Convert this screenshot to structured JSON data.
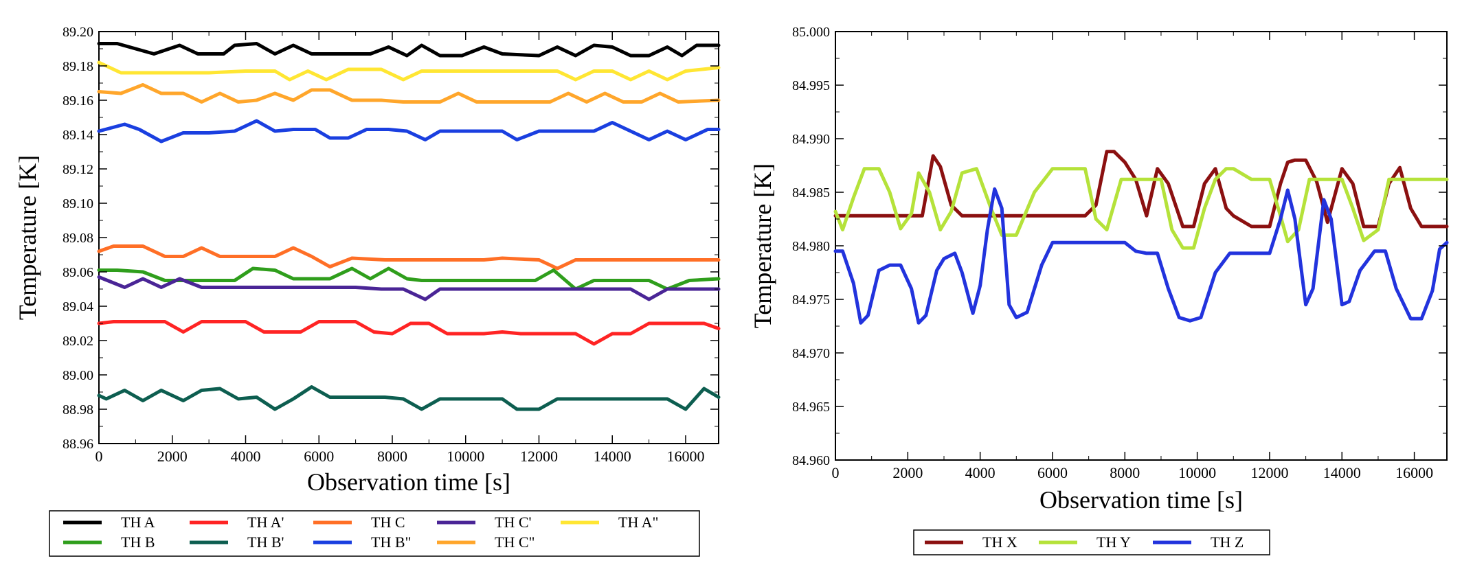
{
  "chart_data": [
    {
      "type": "line",
      "title": "",
      "xlabel": "Observation time [s]",
      "ylabel": "Temperature [K]",
      "xlim": [
        0,
        16900
      ],
      "ylim": [
        88.96,
        89.2
      ],
      "xticks": [
        0,
        2000,
        4000,
        6000,
        8000,
        10000,
        12000,
        14000,
        16000
      ],
      "xtick_labels": [
        "0",
        "2000",
        "4000",
        "6000",
        "8000",
        "10000",
        "12000",
        "14000",
        "16000"
      ],
      "yticks": [
        88.96,
        88.98,
        89.0,
        89.02,
        89.04,
        89.06,
        89.08,
        89.1,
        89.12,
        89.14,
        89.16,
        89.18,
        89.2
      ],
      "ytick_labels": [
        "88.96",
        "88.98",
        "89.00",
        "89.02",
        "89.04",
        "89.06",
        "89.08",
        "89.10",
        "89.12",
        "89.14",
        "89.16",
        "89.18",
        "89.20"
      ],
      "grid": false,
      "legend_position": "bottom",
      "series": [
        {
          "name": "TH A",
          "color": "#000000",
          "x": [
            0,
            500,
            1000,
            1500,
            2200,
            2700,
            3400,
            3700,
            4300,
            4800,
            5300,
            5800,
            6300,
            6900,
            7400,
            7900,
            8400,
            8800,
            9300,
            9900,
            10500,
            11000,
            12000,
            12500,
            13000,
            13500,
            14000,
            14500,
            15000,
            15500,
            15900,
            16300,
            16900
          ],
          "y": [
            89.193,
            89.193,
            89.19,
            89.187,
            89.192,
            89.187,
            89.187,
            89.192,
            89.193,
            89.187,
            89.192,
            89.187,
            89.187,
            89.187,
            89.187,
            89.191,
            89.186,
            89.192,
            89.186,
            89.186,
            89.191,
            89.187,
            89.186,
            89.191,
            89.186,
            89.192,
            89.191,
            89.186,
            89.186,
            89.191,
            89.186,
            89.192,
            89.192
          ]
        },
        {
          "name": "TH A\"",
          "color": "#ffe633",
          "x": [
            0,
            300,
            600,
            1000,
            2000,
            3000,
            4000,
            4800,
            5200,
            5700,
            6200,
            6800,
            7700,
            8300,
            8800,
            9300,
            10000,
            11000,
            12000,
            12500,
            13000,
            13500,
            14000,
            14500,
            15000,
            15500,
            16000,
            16900
          ],
          "y": [
            89.182,
            89.179,
            89.176,
            89.176,
            89.176,
            89.176,
            89.177,
            89.177,
            89.172,
            89.177,
            89.172,
            89.178,
            89.178,
            89.172,
            89.177,
            89.177,
            89.177,
            89.177,
            89.177,
            89.177,
            89.172,
            89.177,
            89.177,
            89.172,
            89.177,
            89.172,
            89.177,
            89.179
          ]
        },
        {
          "name": "TH C\"",
          "color": "#ffa62b",
          "x": [
            0,
            600,
            1200,
            1700,
            2300,
            2800,
            3300,
            3800,
            4300,
            4800,
            5300,
            5800,
            6300,
            6900,
            7700,
            8300,
            9300,
            9800,
            10300,
            11300,
            12300,
            12800,
            13300,
            13800,
            14300,
            14800,
            15300,
            15800,
            16900
          ],
          "y": [
            89.165,
            89.164,
            89.169,
            89.164,
            89.164,
            89.159,
            89.164,
            89.159,
            89.16,
            89.164,
            89.16,
            89.166,
            89.166,
            89.16,
            89.16,
            89.159,
            89.159,
            89.164,
            89.159,
            89.159,
            89.159,
            89.164,
            89.159,
            89.164,
            89.159,
            89.159,
            89.164,
            89.159,
            89.16
          ]
        },
        {
          "name": "TH B\"",
          "color": "#1a3fe0",
          "x": [
            0,
            700,
            1100,
            1700,
            2300,
            3000,
            3700,
            4300,
            4800,
            5300,
            5900,
            6300,
            6800,
            7300,
            7900,
            8400,
            8900,
            9300,
            10000,
            11000,
            11400,
            12000,
            13000,
            13500,
            14000,
            14500,
            15000,
            15500,
            16000,
            16600,
            16900
          ],
          "y": [
            89.142,
            89.146,
            89.143,
            89.136,
            89.141,
            89.141,
            89.142,
            89.148,
            89.142,
            89.143,
            89.143,
            89.138,
            89.138,
            89.143,
            89.143,
            89.142,
            89.137,
            89.142,
            89.142,
            89.142,
            89.137,
            89.142,
            89.142,
            89.142,
            89.147,
            89.142,
            89.137,
            89.142,
            89.137,
            89.143,
            89.143
          ]
        },
        {
          "name": "TH C",
          "color": "#ff6f26",
          "x": [
            0,
            400,
            1200,
            1800,
            2300,
            2800,
            3300,
            4000,
            4800,
            5300,
            5800,
            6300,
            6900,
            7800,
            8500,
            9500,
            10500,
            11000,
            12000,
            12500,
            13000,
            13500,
            14500,
            15500,
            16900
          ],
          "y": [
            89.072,
            89.075,
            89.075,
            89.069,
            89.069,
            89.074,
            89.069,
            89.069,
            89.069,
            89.074,
            89.069,
            89.063,
            89.068,
            89.067,
            89.067,
            89.067,
            89.067,
            89.068,
            89.067,
            89.062,
            89.067,
            89.067,
            89.067,
            89.067,
            89.067
          ]
        },
        {
          "name": "TH B",
          "color": "#2f9e1c",
          "x": [
            0,
            500,
            1200,
            1800,
            2300,
            3000,
            3700,
            4200,
            4800,
            5300,
            5800,
            6300,
            6900,
            7400,
            7900,
            8400,
            8800,
            9300,
            10000,
            11000,
            11900,
            12400,
            13000,
            13500,
            14000,
            15000,
            15500,
            16100,
            16900
          ],
          "y": [
            89.061,
            89.061,
            89.06,
            89.055,
            89.055,
            89.055,
            89.055,
            89.062,
            89.061,
            89.056,
            89.056,
            89.056,
            89.062,
            89.056,
            89.062,
            89.056,
            89.055,
            89.055,
            89.055,
            89.055,
            89.055,
            89.061,
            89.05,
            89.055,
            89.055,
            89.055,
            89.05,
            89.055,
            89.056
          ]
        },
        {
          "name": "TH C'",
          "color": "#4a2596",
          "x": [
            0,
            700,
            1200,
            1700,
            2200,
            2800,
            3300,
            4000,
            5000,
            6000,
            7000,
            7700,
            8300,
            8900,
            9300,
            10000,
            10800,
            11300,
            12000,
            13000,
            14000,
            14500,
            15000,
            15500,
            16000,
            16900
          ],
          "y": [
            89.057,
            89.051,
            89.056,
            89.051,
            89.056,
            89.051,
            89.051,
            89.051,
            89.051,
            89.051,
            89.051,
            89.05,
            89.05,
            89.044,
            89.05,
            89.05,
            89.05,
            89.05,
            89.05,
            89.05,
            89.05,
            89.05,
            89.044,
            89.05,
            89.05,
            89.05
          ]
        },
        {
          "name": "TH A'",
          "color": "#ff2424",
          "x": [
            0,
            400,
            1000,
            1800,
            2300,
            2800,
            3300,
            4000,
            4500,
            5000,
            5500,
            6000,
            6500,
            7000,
            7500,
            8000,
            8500,
            9000,
            9500,
            10000,
            10500,
            11000,
            11500,
            12000,
            12500,
            13000,
            13500,
            14000,
            14500,
            15000,
            15500,
            16000,
            16500,
            16900
          ],
          "y": [
            89.03,
            89.031,
            89.031,
            89.031,
            89.025,
            89.031,
            89.031,
            89.031,
            89.025,
            89.025,
            89.025,
            89.031,
            89.031,
            89.031,
            89.025,
            89.024,
            89.03,
            89.03,
            89.024,
            89.024,
            89.024,
            89.025,
            89.024,
            89.024,
            89.024,
            89.024,
            89.018,
            89.024,
            89.024,
            89.03,
            89.03,
            89.03,
            89.03,
            89.027
          ]
        },
        {
          "name": "TH B'",
          "color": "#0d5e50",
          "x": [
            0,
            200,
            700,
            1200,
            1700,
            2300,
            2800,
            3300,
            3800,
            4300,
            4800,
            5300,
            5800,
            6300,
            6900,
            7800,
            8300,
            8800,
            9300,
            10000,
            11000,
            11400,
            12000,
            12500,
            13000,
            14000,
            15000,
            15500,
            16000,
            16500,
            16900
          ],
          "y": [
            88.988,
            88.986,
            88.991,
            88.985,
            88.991,
            88.985,
            88.991,
            88.992,
            88.986,
            88.987,
            88.98,
            88.986,
            88.993,
            88.987,
            88.987,
            88.987,
            88.986,
            88.98,
            88.986,
            88.986,
            88.986,
            88.98,
            88.98,
            88.986,
            88.986,
            88.986,
            88.986,
            88.986,
            88.98,
            88.992,
            88.987
          ]
        }
      ]
    },
    {
      "type": "line",
      "title": "",
      "xlabel": "Observation time [s]",
      "ylabel": "Temperature [K]",
      "xlim": [
        0,
        16900
      ],
      "ylim": [
        84.96,
        85.0
      ],
      "xticks": [
        0,
        2000,
        4000,
        6000,
        8000,
        10000,
        12000,
        14000,
        16000
      ],
      "xtick_labels": [
        "0",
        "2000",
        "4000",
        "6000",
        "8000",
        "10000",
        "12000",
        "14000",
        "16000"
      ],
      "yticks": [
        84.96,
        84.965,
        84.97,
        84.975,
        84.98,
        84.985,
        84.99,
        84.995,
        85.0
      ],
      "ytick_labels": [
        "84.960",
        "84.965",
        "84.970",
        "84.975",
        "84.980",
        "84.985",
        "84.990",
        "84.995",
        "85.000"
      ],
      "grid": false,
      "legend_position": "bottom",
      "series": [
        {
          "name": "TH X",
          "color": "#8b1010",
          "x": [
            0,
            500,
            1000,
            1500,
            2000,
            2400,
            2700,
            2900,
            3200,
            3500,
            4000,
            5000,
            6000,
            6900,
            7200,
            7500,
            7700,
            8000,
            8300,
            8600,
            8900,
            9200,
            9600,
            9900,
            10200,
            10500,
            10800,
            11000,
            11500,
            12000,
            12300,
            12500,
            12700,
            13000,
            13300,
            13600,
            14000,
            14300,
            14600,
            15000,
            15300,
            15600,
            15900,
            16200,
            16500,
            16900
          ],
          "y": [
            84.9828,
            84.9828,
            84.9828,
            84.9828,
            84.9828,
            84.9828,
            84.9884,
            84.9874,
            84.9838,
            84.9828,
            84.9828,
            84.9828,
            84.9828,
            84.9828,
            84.9838,
            84.9888,
            84.9888,
            84.9878,
            84.9862,
            84.9828,
            84.9872,
            84.9858,
            84.9818,
            84.9818,
            84.9858,
            84.9872,
            84.9835,
            84.9828,
            84.9818,
            84.9818,
            84.9858,
            84.9878,
            84.988,
            84.988,
            84.986,
            84.9822,
            84.9872,
            84.9858,
            84.9818,
            84.9818,
            84.9858,
            84.9873,
            84.9835,
            84.9818,
            84.9818,
            84.9818
          ]
        },
        {
          "name": "TH Y",
          "color": "#b5e23a",
          "x": [
            0,
            200,
            500,
            800,
            1200,
            1500,
            1800,
            2100,
            2300,
            2600,
            2900,
            3200,
            3500,
            3900,
            4300,
            4600,
            5000,
            5500,
            6000,
            6900,
            7200,
            7500,
            7900,
            8500,
            9000,
            9300,
            9600,
            9900,
            10200,
            10500,
            10800,
            11000,
            11500,
            12000,
            12300,
            12500,
            12800,
            13100,
            14000,
            14300,
            14600,
            15000,
            15300,
            16000,
            16900
          ],
          "y": [
            84.9832,
            84.9815,
            84.9845,
            84.9872,
            84.9872,
            84.985,
            84.9816,
            84.983,
            84.9868,
            84.985,
            84.9815,
            84.9832,
            84.9868,
            84.9872,
            84.9835,
            84.981,
            84.981,
            84.985,
            84.9872,
            84.9872,
            84.9825,
            84.9815,
            84.9862,
            84.9862,
            84.9862,
            84.9815,
            84.9798,
            84.9798,
            84.9835,
            84.9862,
            84.9872,
            84.9872,
            84.9862,
            84.9862,
            84.9828,
            84.9804,
            84.9815,
            84.9862,
            84.9862,
            84.9835,
            84.9805,
            84.9815,
            84.9862,
            84.9862,
            84.9862
          ]
        },
        {
          "name": "TH Z",
          "color": "#2233dd",
          "x": [
            0,
            200,
            500,
            700,
            900,
            1200,
            1500,
            1800,
            2100,
            2300,
            2500,
            2800,
            3000,
            3300,
            3500,
            3800,
            4000,
            4200,
            4400,
            4600,
            4800,
            5000,
            5300,
            5700,
            6000,
            7000,
            8000,
            8300,
            8600,
            8900,
            9200,
            9500,
            9800,
            10100,
            10500,
            10900,
            11500,
            12000,
            12300,
            12500,
            12700,
            13000,
            13200,
            13500,
            13700,
            14000,
            14200,
            14500,
            14900,
            15200,
            15500,
            15900,
            16200,
            16500,
            16700,
            16900
          ],
          "y": [
            84.9795,
            84.9795,
            84.9765,
            84.9728,
            84.9735,
            84.9777,
            84.9782,
            84.9782,
            84.976,
            84.9728,
            84.9735,
            84.9777,
            84.9788,
            84.9793,
            84.9775,
            84.9737,
            84.9763,
            84.9815,
            84.9853,
            84.9835,
            84.9745,
            84.9733,
            84.9738,
            84.9782,
            84.9803,
            84.9803,
            84.9803,
            84.9795,
            84.9793,
            84.9793,
            84.976,
            84.9733,
            84.973,
            84.9733,
            84.9775,
            84.9793,
            84.9793,
            84.9793,
            84.9825,
            84.9852,
            84.9825,
            84.9745,
            84.976,
            84.9843,
            84.9825,
            84.9745,
            84.9748,
            84.9777,
            84.9795,
            84.9795,
            84.976,
            84.9732,
            84.9732,
            84.9758,
            84.9797,
            84.9803
          ]
        }
      ]
    }
  ]
}
